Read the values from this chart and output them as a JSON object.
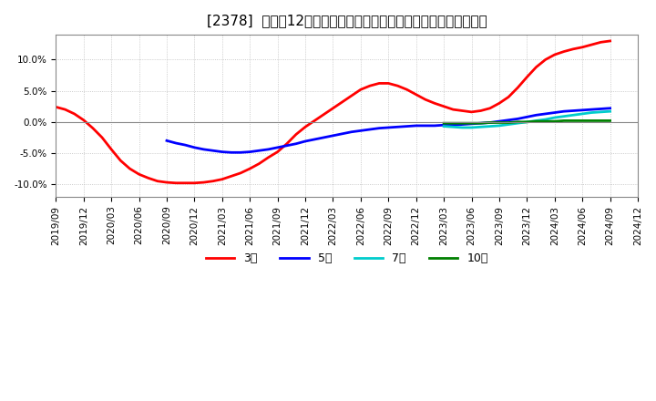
{
  "title": "[2378]  売上高12か月移動合計の対前年同期増減率の平均値の推移",
  "ylim": [
    -0.12,
    0.14
  ],
  "yticks": [
    -0.1,
    -0.05,
    0.0,
    0.05,
    0.1
  ],
  "background_color": "#ffffff",
  "plot_bg_color": "#ffffff",
  "grid_color": "#aaaaaa",
  "series": {
    "3年": {
      "color": "#ff0000",
      "x": [
        0,
        1,
        2,
        3,
        4,
        5,
        6,
        7,
        8,
        9,
        10,
        11,
        12,
        13,
        14,
        15,
        16,
        17,
        18,
        19,
        20,
        21,
        22,
        23,
        24,
        25,
        26,
        27,
        28,
        29,
        30,
        31,
        32,
        33,
        34,
        35,
        36,
        37,
        38,
        39,
        40,
        41,
        42,
        43,
        44,
        45,
        46,
        47,
        48,
        49,
        50,
        51,
        52,
        53,
        54,
        55,
        56,
        57,
        58,
        59,
        60
      ],
      "y": [
        0.024,
        0.02,
        0.013,
        0.003,
        -0.01,
        -0.025,
        -0.044,
        -0.062,
        -0.075,
        -0.084,
        -0.09,
        -0.095,
        -0.097,
        -0.098,
        -0.098,
        -0.098,
        -0.097,
        -0.095,
        -0.092,
        -0.087,
        -0.082,
        -0.075,
        -0.067,
        -0.057,
        -0.048,
        -0.035,
        -0.02,
        -0.008,
        0.002,
        0.012,
        0.022,
        0.032,
        0.042,
        0.052,
        0.058,
        0.062,
        0.062,
        0.058,
        0.052,
        0.044,
        0.036,
        0.03,
        0.025,
        0.02,
        0.018,
        0.016,
        0.018,
        0.022,
        0.03,
        0.04,
        0.055,
        0.072,
        0.088,
        0.1,
        0.108,
        0.113,
        0.117,
        0.12,
        0.124,
        0.128,
        0.13
      ]
    },
    "5年": {
      "color": "#0000ff",
      "x": [
        12,
        13,
        14,
        15,
        16,
        17,
        18,
        19,
        20,
        21,
        22,
        23,
        24,
        25,
        26,
        27,
        28,
        29,
        30,
        31,
        32,
        33,
        34,
        35,
        36,
        37,
        38,
        39,
        40,
        41,
        42,
        43,
        44,
        45,
        46,
        47,
        48,
        49,
        50,
        51,
        52,
        53,
        54,
        55,
        56,
        57,
        58,
        59,
        60
      ],
      "y": [
        -0.03,
        -0.034,
        -0.037,
        -0.041,
        -0.044,
        -0.046,
        -0.048,
        -0.049,
        -0.049,
        -0.048,
        -0.046,
        -0.044,
        -0.041,
        -0.038,
        -0.035,
        -0.031,
        -0.028,
        -0.025,
        -0.022,
        -0.019,
        -0.016,
        -0.014,
        -0.012,
        -0.01,
        -0.009,
        -0.008,
        -0.007,
        -0.006,
        -0.006,
        -0.006,
        -0.005,
        -0.005,
        -0.004,
        -0.003,
        -0.002,
        -0.001,
        0.001,
        0.003,
        0.005,
        0.008,
        0.011,
        0.013,
        0.015,
        0.017,
        0.018,
        0.019,
        0.02,
        0.021,
        0.022
      ]
    },
    "7年": {
      "color": "#00cccc",
      "x": [
        42,
        43,
        44,
        45,
        46,
        47,
        48,
        49,
        50,
        51,
        52,
        53,
        54,
        55,
        56,
        57,
        58,
        59,
        60
      ],
      "y": [
        -0.007,
        -0.008,
        -0.009,
        -0.009,
        -0.008,
        -0.007,
        -0.006,
        -0.004,
        -0.002,
        0.0,
        0.002,
        0.004,
        0.007,
        0.009,
        0.011,
        0.013,
        0.015,
        0.016,
        0.017
      ]
    },
    "10年": {
      "color": "#008000",
      "x": [
        42,
        43,
        44,
        45,
        46,
        47,
        48,
        49,
        50,
        51,
        52,
        53,
        54,
        55,
        56,
        57,
        58,
        59,
        60
      ],
      "y": [
        -0.002,
        -0.002,
        -0.002,
        -0.002,
        -0.002,
        -0.001,
        -0.001,
        -0.001,
        0.0,
        0.0,
        0.001,
        0.001,
        0.001,
        0.002,
        0.002,
        0.002,
        0.002,
        0.002,
        0.002
      ]
    }
  },
  "x_tick_labels": [
    "2019/09",
    "2019/12",
    "2020/03",
    "2020/06",
    "2020/09",
    "2020/12",
    "2021/03",
    "2021/06",
    "2021/09",
    "2021/12",
    "2022/03",
    "2022/06",
    "2022/09",
    "2022/12",
    "2023/03",
    "2023/06",
    "2023/09",
    "2023/12",
    "2024/03",
    "2024/06",
    "2024/09",
    "2024/12"
  ],
  "x_tick_positions": [
    0,
    3,
    6,
    9,
    12,
    15,
    18,
    21,
    24,
    27,
    30,
    33,
    36,
    39,
    42,
    45,
    48,
    51,
    54,
    57,
    60,
    63
  ],
  "legend_labels": [
    "3年",
    "5年",
    "7年",
    "10年"
  ],
  "legend_colors": [
    "#ff0000",
    "#0000ff",
    "#00cccc",
    "#008000"
  ],
  "linewidth": 2.0,
  "title_fontsize": 11,
  "tick_fontsize": 7.5,
  "legend_fontsize": 9
}
